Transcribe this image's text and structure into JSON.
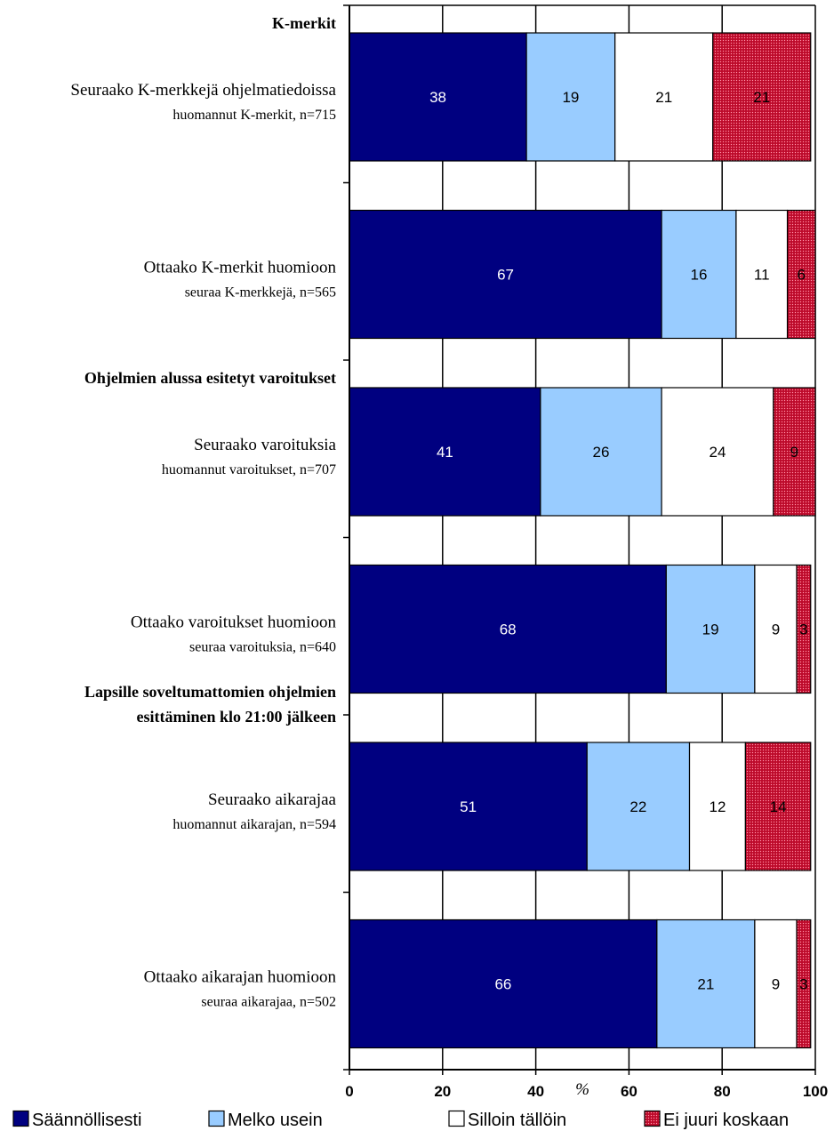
{
  "chart_data": {
    "type": "bar",
    "orientation": "horizontal",
    "stacked": true,
    "xlim": [
      0,
      100
    ],
    "xticks": [
      0,
      20,
      40,
      60,
      80,
      100
    ],
    "xlabel": "%",
    "grid": true,
    "legend_position": "bottom",
    "groups": [
      {
        "title": [
          "K-merkit"
        ],
        "start": 0
      },
      {
        "title": [
          "Ohjelmien alussa esitetyt varoitukset"
        ],
        "start": 2
      },
      {
        "title": [
          "Lapsille soveltumattomien ohjelmien",
          "esittäminen klo 21:00 jälkeen"
        ],
        "start": 4
      }
    ],
    "categories": [
      {
        "label": "Seuraako K-merkkejä ohjelmatiedoissa",
        "sublabel": "huomannut K-merkit, n=715"
      },
      {
        "label": "Ottaako K-merkit huomioon",
        "sublabel": "seuraa K-merkkejä, n=565"
      },
      {
        "label": "Seuraako varoituksia",
        "sublabel": "huomannut varoitukset, n=707"
      },
      {
        "label": "Ottaako varoitukset huomioon",
        "sublabel": "seuraa varoituksia, n=640"
      },
      {
        "label": "Seuraako aikarajaa",
        "sublabel": "huomannut aikarajan, n=594"
      },
      {
        "label": "Ottaako aikarajan huomioon",
        "sublabel": "seuraa aikarajaa, n=502"
      }
    ],
    "series": [
      {
        "name": "Säännöllisesti",
        "color": "#000080",
        "label_color": "#ffffff",
        "values": [
          38,
          67,
          41,
          68,
          51,
          66
        ]
      },
      {
        "name": "Melko usein",
        "color": "#99ccff",
        "label_color": "#000000",
        "values": [
          19,
          16,
          26,
          19,
          22,
          21
        ]
      },
      {
        "name": "Silloin tällöin",
        "color": "#ffffff",
        "label_color": "#000000",
        "values": [
          21,
          11,
          24,
          9,
          12,
          9
        ]
      },
      {
        "name": "Ei juuri koskaan",
        "color": "#cc1133",
        "label_color": "#000000",
        "pattern": "dotted",
        "values": [
          21,
          6,
          9,
          3,
          14,
          3
        ]
      }
    ]
  }
}
